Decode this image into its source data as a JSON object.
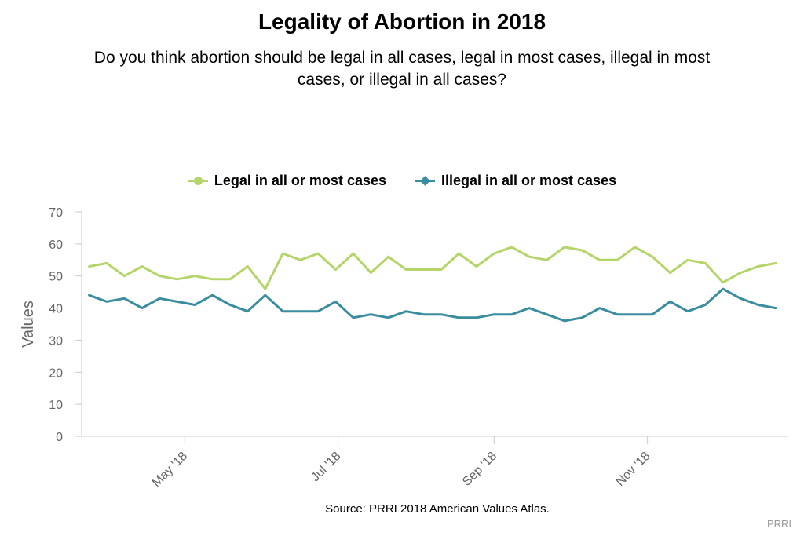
{
  "chart_data": {
    "type": "line",
    "title": "Legality of Abortion in 2018",
    "subtitle": "Do you think abortion should be legal in all cases, legal in most cases, illegal in most cases, or illegal in all cases?",
    "ylabel": "Values",
    "ylim": [
      0,
      70
    ],
    "yticks": [
      0,
      10,
      20,
      30,
      40,
      50,
      60,
      70
    ],
    "xlim": [
      "2018-03-21",
      "2018-12-27"
    ],
    "xticks": [
      {
        "date": "2018-05-01",
        "label": "May '18"
      },
      {
        "date": "2018-07-01",
        "label": "Jul '18"
      },
      {
        "date": "2018-09-01",
        "label": "Sep '18"
      },
      {
        "date": "2018-11-01",
        "label": "Nov '18"
      }
    ],
    "grid": false,
    "legend_position": "top",
    "dates": [
      "2018-03-24",
      "2018-03-31",
      "2018-04-07",
      "2018-04-14",
      "2018-04-21",
      "2018-04-28",
      "2018-05-05",
      "2018-05-12",
      "2018-05-19",
      "2018-05-26",
      "2018-06-02",
      "2018-06-09",
      "2018-06-16",
      "2018-06-23",
      "2018-06-30",
      "2018-07-07",
      "2018-07-14",
      "2018-07-21",
      "2018-07-28",
      "2018-08-04",
      "2018-08-11",
      "2018-08-18",
      "2018-08-25",
      "2018-09-01",
      "2018-09-08",
      "2018-09-15",
      "2018-09-22",
      "2018-09-29",
      "2018-10-06",
      "2018-10-13",
      "2018-10-20",
      "2018-10-27",
      "2018-11-03",
      "2018-11-10",
      "2018-11-17",
      "2018-11-24",
      "2018-12-01",
      "2018-12-08",
      "2018-12-15",
      "2018-12-22"
    ],
    "series": [
      {
        "name": "Legal in all or most cases",
        "color": "#b5d56a",
        "marker": "circle",
        "values": [
          53,
          54,
          50,
          53,
          50,
          49,
          50,
          49,
          49,
          53,
          46,
          57,
          55,
          57,
          52,
          57,
          51,
          56,
          52,
          52,
          52,
          57,
          53,
          57,
          59,
          56,
          55,
          59,
          58,
          55,
          55,
          59,
          56,
          51,
          55,
          54,
          48,
          51,
          53,
          54
        ]
      },
      {
        "name": "Illegal in all or most cases",
        "color": "#3a8d9e",
        "marker": "diamond",
        "values": [
          44,
          42,
          43,
          40,
          43,
          42,
          41,
          44,
          41,
          39,
          44,
          39,
          39,
          39,
          42,
          37,
          38,
          37,
          39,
          38,
          38,
          37,
          37,
          38,
          38,
          40,
          38,
          36,
          37,
          40,
          38,
          38,
          38,
          42,
          39,
          41,
          46,
          43,
          41,
          40
        ]
      }
    ]
  },
  "source": "Source: PRRI 2018 American Values Atlas.",
  "credit": "PRRI"
}
